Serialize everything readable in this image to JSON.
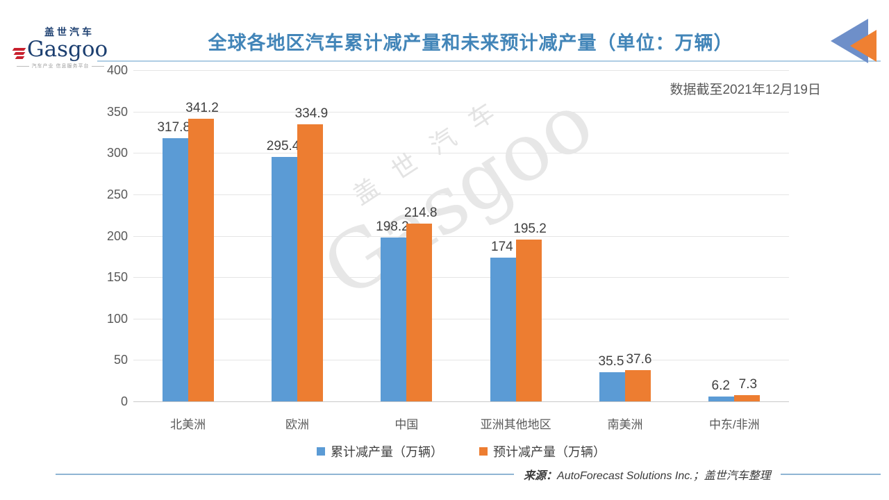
{
  "logo": {
    "cn": "盖世汽车",
    "en": "Gasgoo",
    "tagline": "汽车产业 信息服务平台"
  },
  "header": {
    "data_cutoff_note": "数据截至2021年12月19日"
  },
  "watermark": {
    "cn": "盖世汽车",
    "en": "Gasgoo"
  },
  "chart_data": {
    "type": "bar",
    "title": "全球各地区汽车累计减产量和未来预计减产量（单位：万辆）",
    "categories": [
      "北美洲",
      "欧洲",
      "中国",
      "亚洲其他地区",
      "南美洲",
      "中东/非洲"
    ],
    "series": [
      {
        "name": "累计减产量（万辆）",
        "color": "#5B9BD5",
        "values": [
          317.8,
          295.4,
          198.2,
          174,
          35.5,
          6.2
        ]
      },
      {
        "name": "预计减产量（万辆）",
        "color": "#ED7D31",
        "values": [
          341.2,
          334.9,
          214.8,
          195.2,
          37.6,
          7.3
        ]
      }
    ],
    "ylim": [
      0,
      400
    ],
    "y_ticks": [
      400,
      350,
      300,
      250,
      200,
      150,
      100,
      50,
      0
    ],
    "grid": true,
    "legend_position": "bottom",
    "xlabel": "",
    "ylabel": ""
  },
  "footer": {
    "source_label": "来源：",
    "source_text": "AutoForecast Solutions Inc.；盖世汽车整理"
  },
  "colors": {
    "title_blue": "#4285B8",
    "series1_blue": "#5B9BD5",
    "series2_orange": "#ED7D31",
    "corner_triangle_blue": "#6E8FC9",
    "corner_triangle_orange": "#EF8032",
    "rule_light_blue": "#AECDE4",
    "footer_rule_blue": "#8FB5D3",
    "axis_text_gray": "#595959",
    "label_gray": "#404040"
  }
}
